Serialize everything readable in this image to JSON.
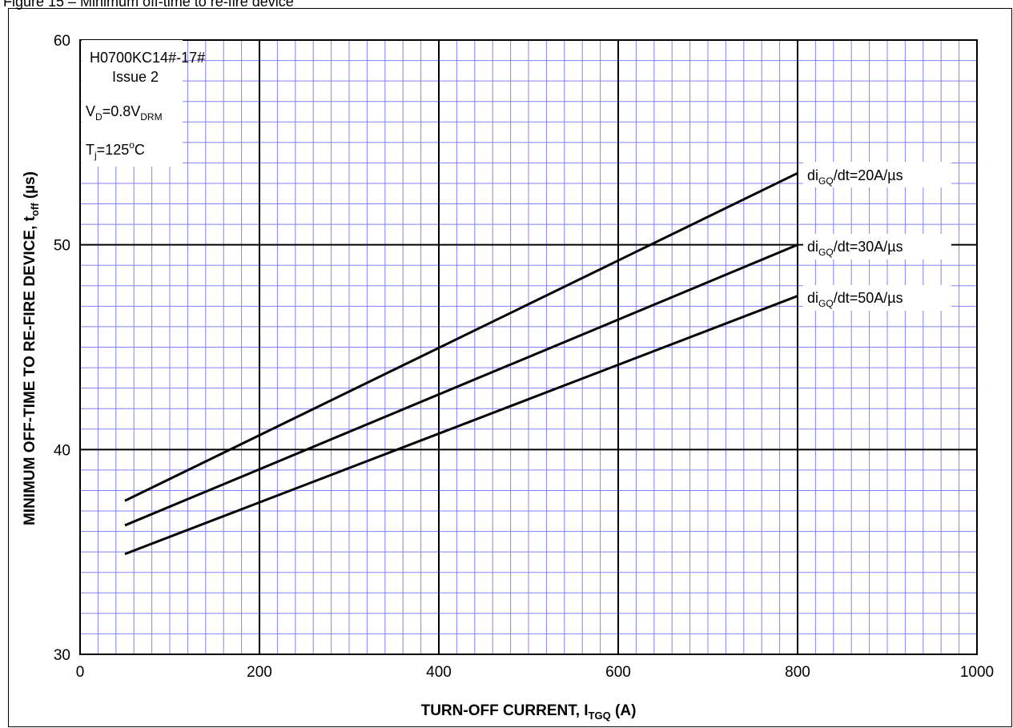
{
  "figure": {
    "header_text": "Figure 15 – Minimum off-time to re-fire device"
  },
  "chart_data": {
    "type": "line",
    "title": "",
    "xlabel": "TURN-OFF CURRENT, I",
    "xlabel_sub": "TGQ",
    "xlabel_suffix": " (A)",
    "ylabel": "MINIMUM OFF-TIME TO RE-FIRE DEVICE, t",
    "ylabel_sub": "off",
    "ylabel_suffix": " (µs)",
    "xlim": [
      0,
      1000
    ],
    "ylim": [
      30,
      60
    ],
    "x_ticks": [
      0,
      200,
      400,
      600,
      800,
      1000
    ],
    "y_ticks": [
      30,
      40,
      50,
      60
    ],
    "grid": true,
    "annotation": {
      "device": "H0700KC14#-17#",
      "issue": "Issue 2",
      "vd_prefix": "V",
      "vd_sub": "D",
      "vd_mid": "=0.8V",
      "vd_sub2": "DRM",
      "tj_prefix": "T",
      "tj_sub": "j",
      "tj_mid": "=125",
      "tj_sup": "o",
      "tj_suffix": "C"
    },
    "series": [
      {
        "name": "di",
        "name_sub": "GQ",
        "name_suffix": "/dt=20A/µs",
        "x": [
          50,
          800
        ],
        "y": [
          37.5,
          53.5
        ]
      },
      {
        "name": "di",
        "name_sub": "GQ",
        "name_suffix": "/dt=30A/µs",
        "x": [
          50,
          800
        ],
        "y": [
          36.3,
          50.0
        ]
      },
      {
        "name": "di",
        "name_sub": "GQ",
        "name_suffix": "/dt=50A/µs",
        "x": [
          50,
          800
        ],
        "y": [
          34.9,
          47.5
        ]
      }
    ]
  }
}
